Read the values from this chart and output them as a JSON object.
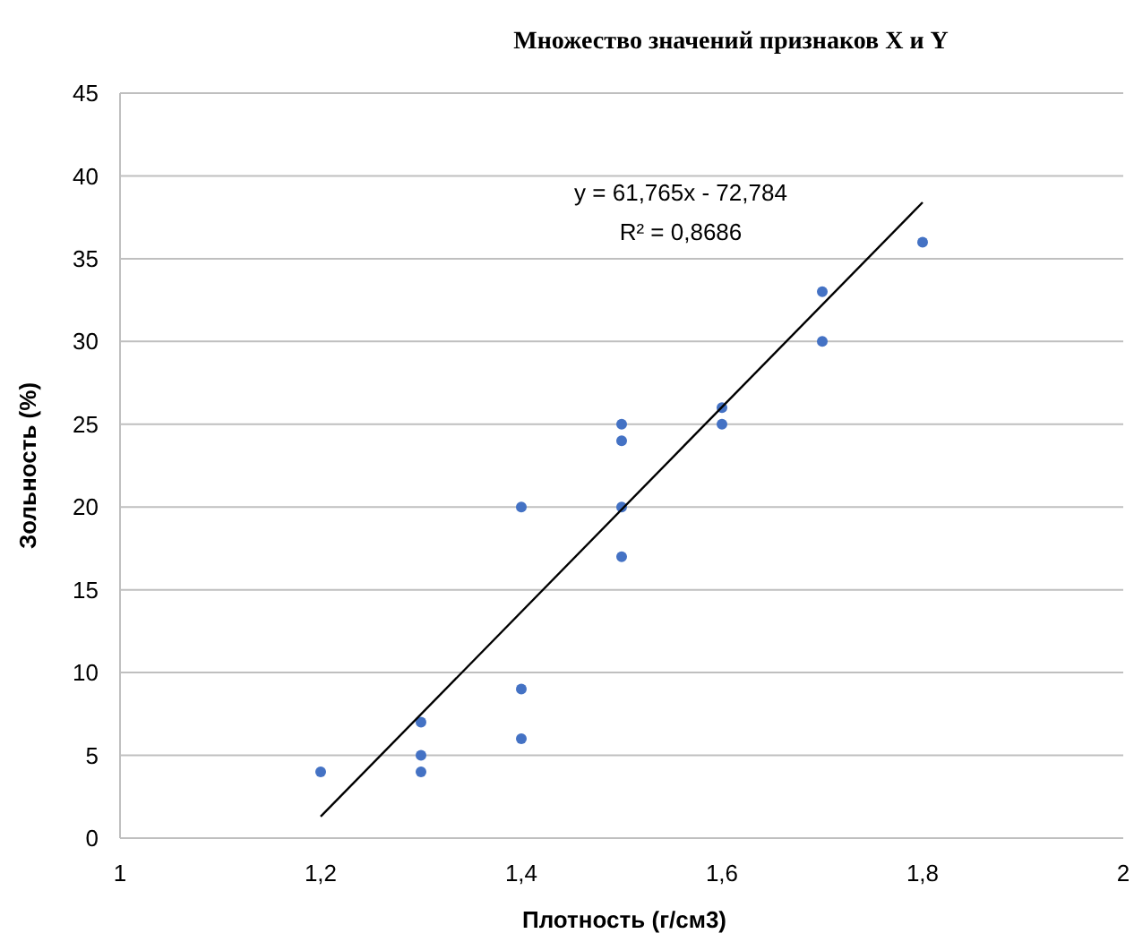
{
  "chart_data": {
    "type": "scatter",
    "title": "Множество значений признаков X и Y",
    "xlabel": "Плотность (г/см3)",
    "ylabel": "Зольность (%)",
    "xlim": [
      1,
      2
    ],
    "xticks": [
      {
        "value": 1,
        "label": "1"
      },
      {
        "value": 1.2,
        "label": "1,2"
      },
      {
        "value": 1.4,
        "label": "1,4"
      },
      {
        "value": 1.6,
        "label": "1,6"
      },
      {
        "value": 1.8,
        "label": "1,8"
      },
      {
        "value": 2,
        "label": "2"
      }
    ],
    "ylim": [
      0,
      45
    ],
    "yticks": [
      0,
      5,
      10,
      15,
      20,
      25,
      30,
      35,
      40,
      45
    ],
    "grid": "y",
    "series": [
      {
        "marker": "circle",
        "color": "#4472c4",
        "x": [
          1.2,
          1.3,
          1.3,
          1.3,
          1.4,
          1.4,
          1.4,
          1.5,
          1.5,
          1.5,
          1.5,
          1.6,
          1.6,
          1.7,
          1.7,
          1.8
        ],
        "values": [
          4,
          7,
          5,
          4,
          20,
          9,
          6,
          25,
          24,
          20,
          17,
          26,
          25,
          33,
          30,
          36
        ]
      },
      {
        "type": "line",
        "color": "#000000",
        "x": [
          1.2,
          1.8
        ],
        "values": [
          1.3,
          38.4
        ]
      }
    ],
    "annotations": [
      "y = 61,765x - 72,784",
      "R² = 0,8686"
    ]
  }
}
